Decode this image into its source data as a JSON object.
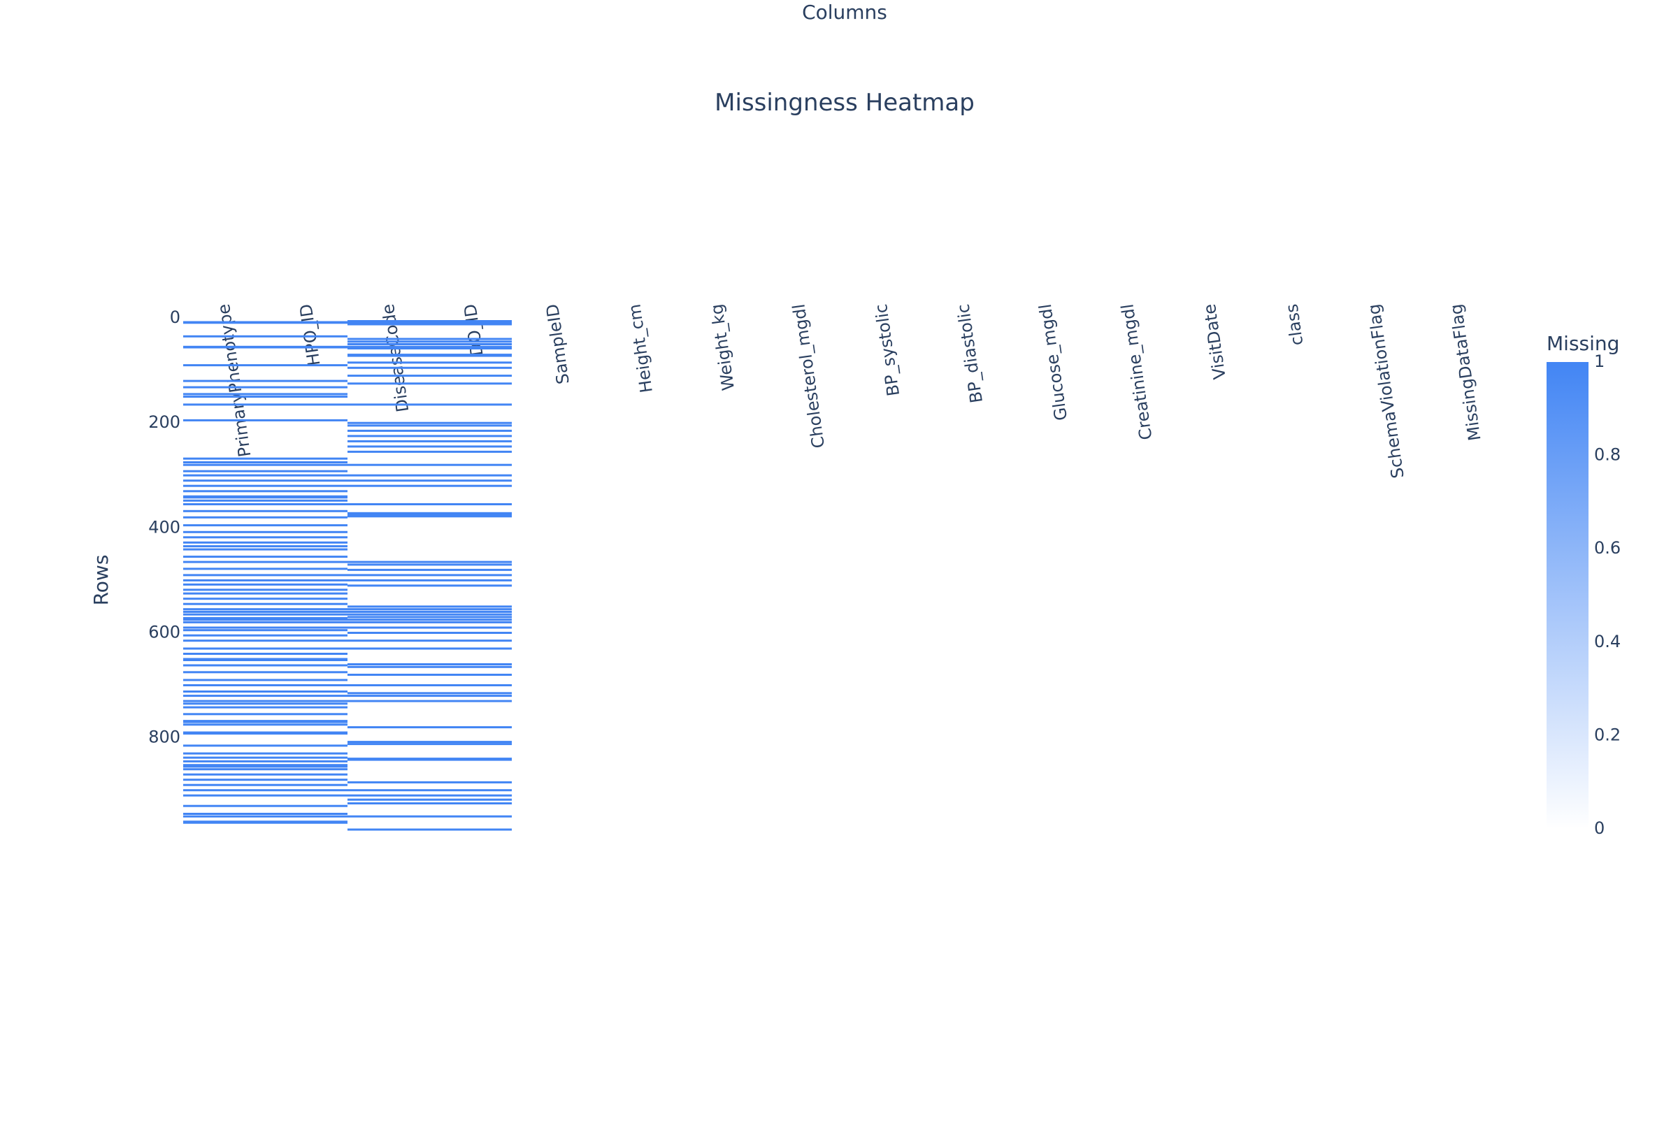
{
  "chart_data": {
    "type": "heatmap",
    "title": "Missingness Heatmap",
    "xlabel": "Columns",
    "ylabel": "Rows",
    "x_axis_side": "top",
    "columns": [
      "PrimaryPhenotype",
      "HPO_ID",
      "DiseaseCode",
      "DO_ID",
      "SampleID",
      "Height_cm",
      "Weight_kg",
      "Cholesterol_mgdl",
      "BP_systolic",
      "BP_diastolic",
      "Glucose_mgdl",
      "Creatinine_mgdl",
      "VisitDate",
      "class",
      "SchemaViolationFlag",
      "MissingDataFlag"
    ],
    "n_rows": 975,
    "yrange": [
      0,
      975
    ],
    "y_ticks": [
      "0",
      "200",
      "400",
      "600",
      "800"
    ],
    "y_tick_values": [
      0,
      200,
      400,
      600,
      800
    ],
    "values": "1 = missing, 0 = present; all cells 0 except rows listed in missing_rows",
    "missing_rows": [
      {
        "columns": [
          "PrimaryPhenotype",
          "HPO_ID"
        ],
        "rows": [
          8,
          9,
          35,
          55,
          56,
          90,
          120,
          132,
          145,
          150,
          165,
          195,
          268,
          275,
          280,
          292,
          300,
          310,
          320,
          330,
          340,
          342,
          348,
          355,
          368,
          380,
          395,
          408,
          418,
          428,
          435,
          441,
          455,
          465,
          478,
          490,
          500,
          508,
          518,
          525,
          535,
          545,
          555,
          560,
          565,
          572,
          575,
          580,
          590,
          595,
          605,
          615,
          630,
          640,
          650,
          652,
          662,
          675,
          690,
          700,
          712,
          720,
          730,
          735,
          742,
          755,
          768,
          770,
          775,
          790,
          792,
          815,
          830,
          838,
          845,
          852,
          855,
          860,
          870,
          880,
          890,
          900,
          910,
          930,
          945,
          950,
          960,
          962
        ]
      },
      {
        "columns": [
          "DiseaseCode",
          "DO_ID"
        ],
        "rows": [
          6,
          9,
          12,
          40,
          45,
          50,
          55,
          58,
          70,
          72,
          85,
          95,
          110,
          125,
          165,
          200,
          205,
          215,
          225,
          235,
          245,
          255,
          280,
          300,
          310,
          320,
          355,
          372,
          375,
          378,
          465,
          470,
          480,
          490,
          500,
          510,
          550,
          555,
          560,
          565,
          570,
          575,
          580,
          590,
          600,
          615,
          630,
          660,
          665,
          680,
          700,
          715,
          720,
          730,
          780,
          808,
          812,
          840,
          842,
          885,
          900,
          910,
          918,
          925,
          950,
          975
        ]
      }
    ],
    "colorscale": [
      [
        0,
        "#ffffff"
      ],
      [
        1,
        "#4285f4"
      ]
    ],
    "colorbar": {
      "title": "Missing",
      "range": [
        0,
        1
      ],
      "tick_labels": [
        "0",
        "0.2",
        "0.4",
        "0.6",
        "0.8",
        "1"
      ],
      "tick_values": [
        0,
        0.2,
        0.4,
        0.6,
        0.8,
        1
      ]
    },
    "grid": false,
    "legend": "colorbar right"
  },
  "colors": {
    "text": "#2a3f5f",
    "missing": "#4285f4",
    "present": "#ffffff",
    "background": "#ffffff"
  }
}
